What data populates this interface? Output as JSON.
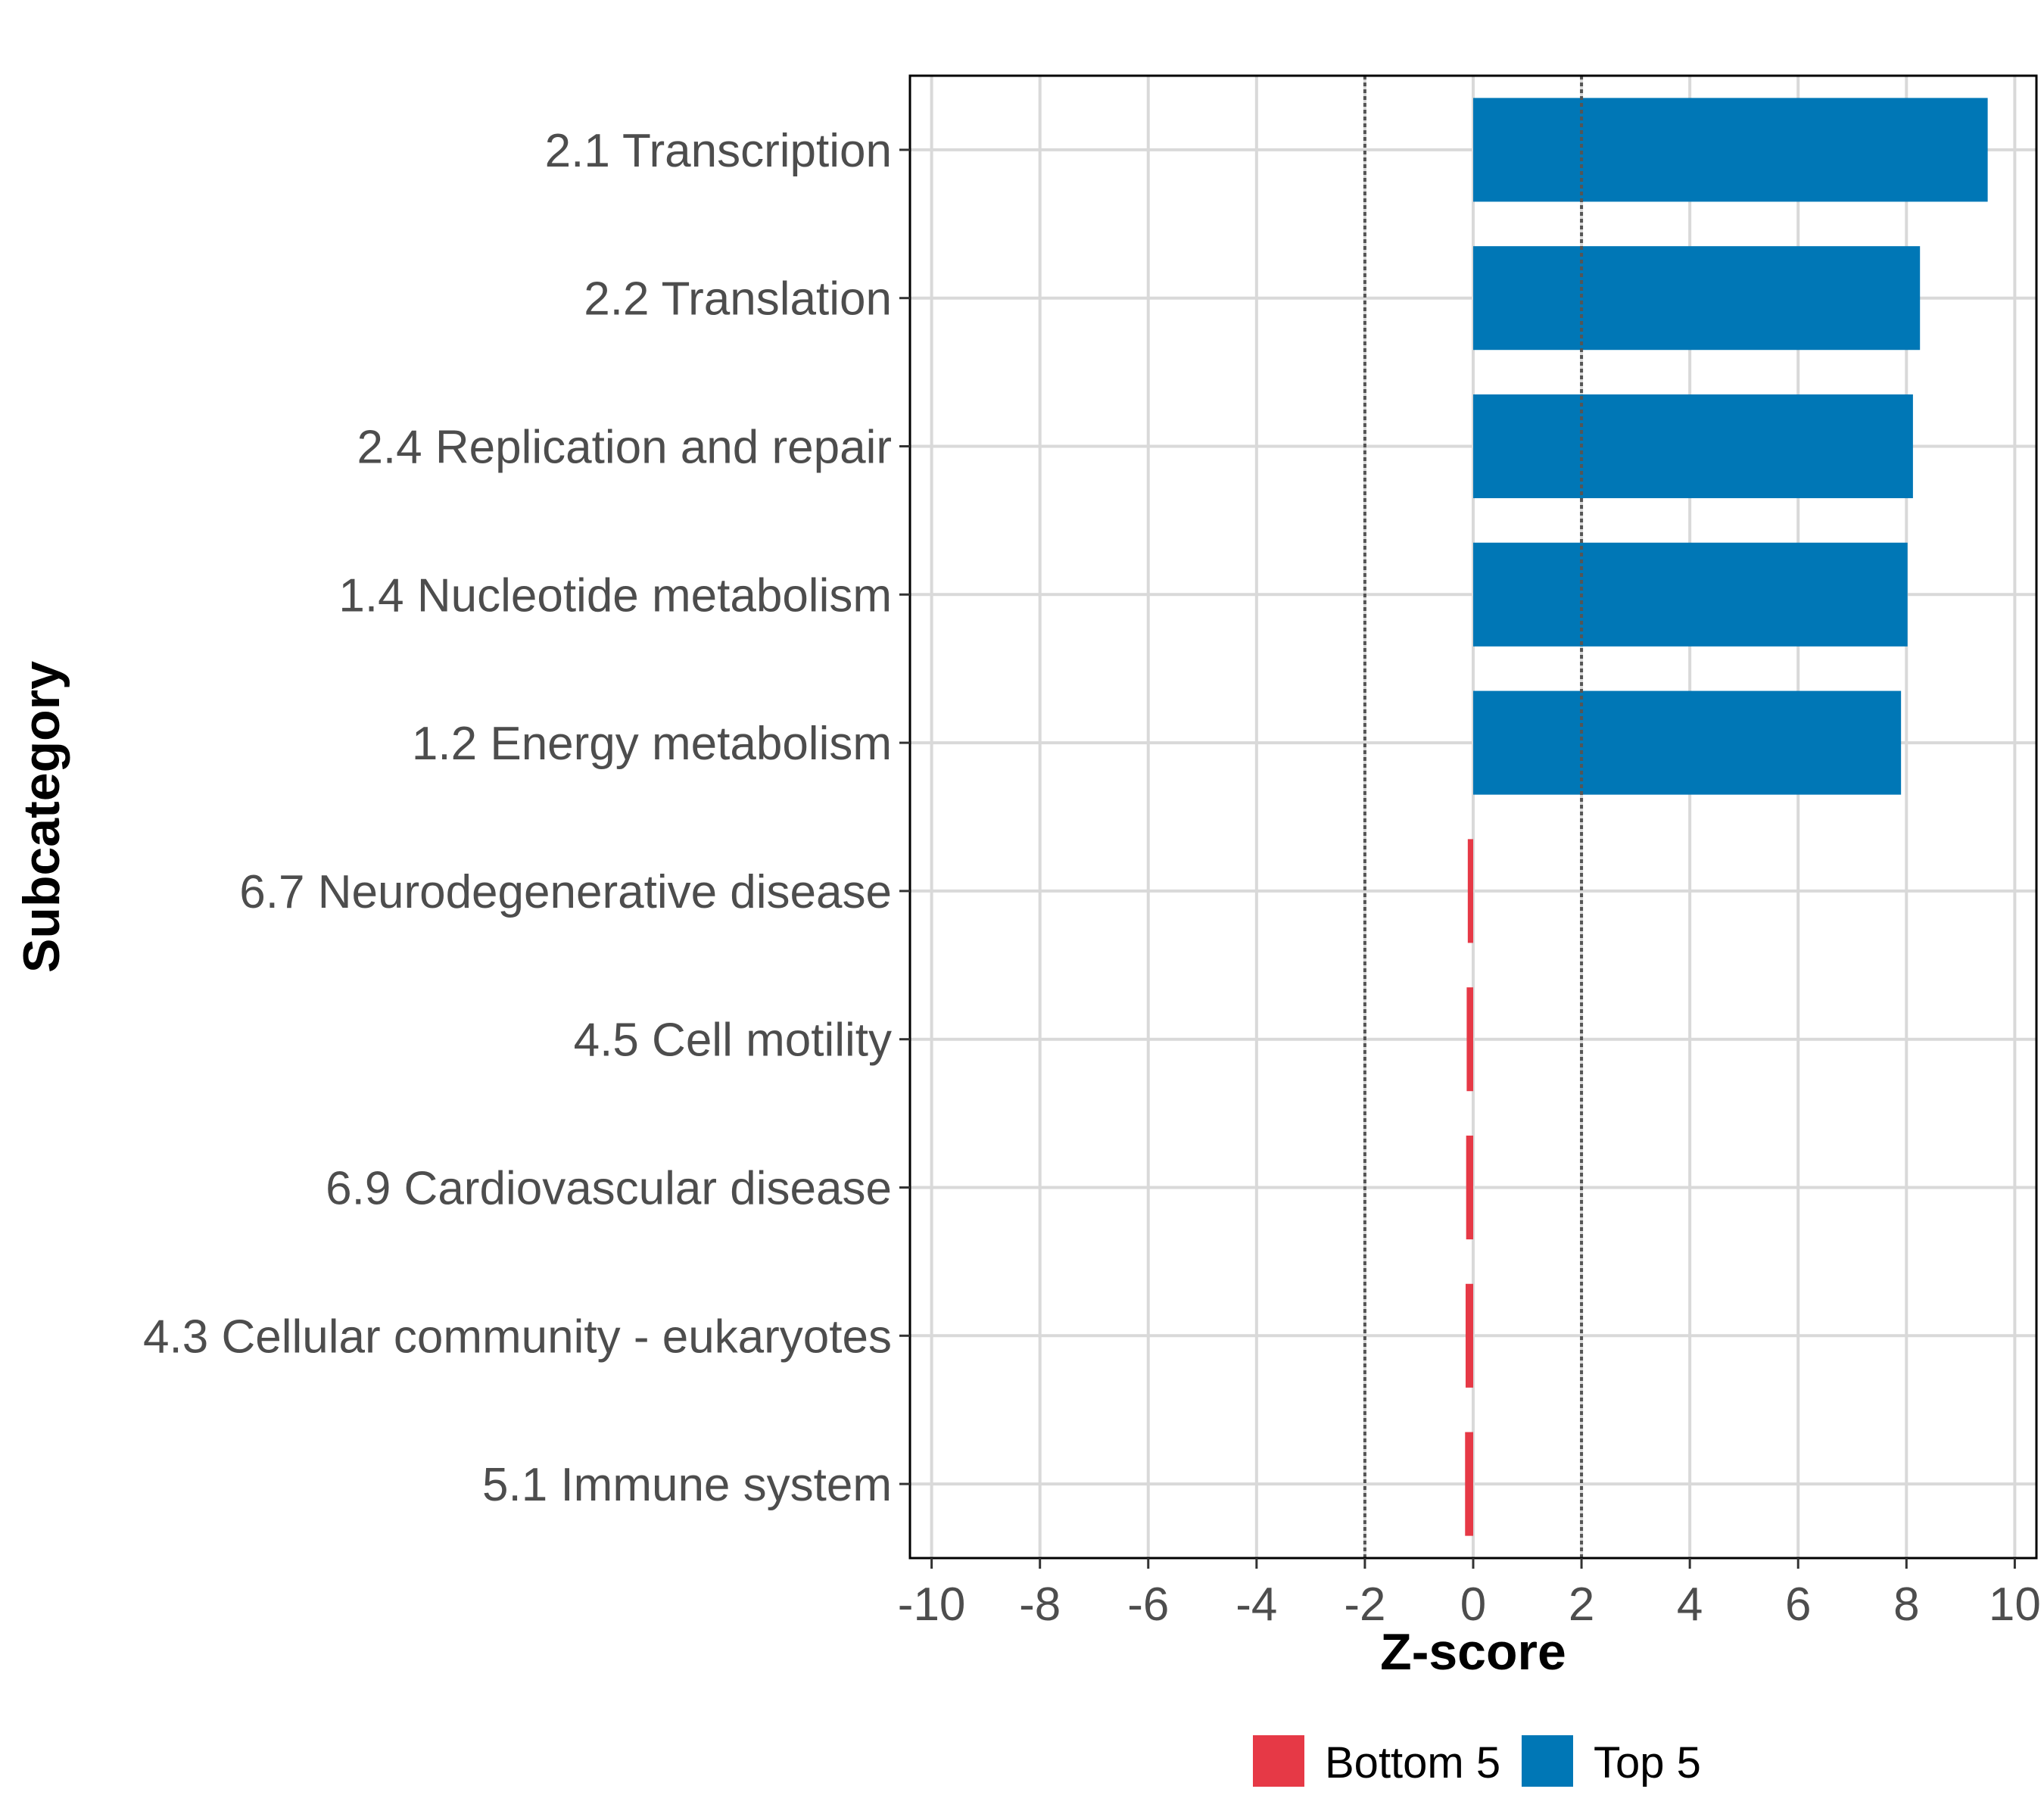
{
  "chart_data": {
    "type": "bar",
    "orientation": "horizontal",
    "title": "",
    "xlabel": "Z-score",
    "ylabel": "Subcategory",
    "xlim": [
      -10.4,
      10.4
    ],
    "xticks": [
      -10,
      -8,
      -6,
      -4,
      -2,
      0,
      2,
      4,
      6,
      8,
      10
    ],
    "xtick_labels": [
      "-10",
      "-8",
      "-6",
      "-4",
      "-2",
      "0",
      "2",
      "4",
      "6",
      "8",
      "10"
    ],
    "grid": true,
    "reference_lines": [
      -2,
      2
    ],
    "categories": [
      "2.1 Transcription",
      "2.2 Translation",
      "2.4 Replication and repair",
      "1.4 Nucleotide metabolism",
      "1.2 Energy metabolism",
      "6.7 Neurodegenerative disease",
      "4.5 Cell motility",
      "6.9 Cardiovascular disease",
      "4.3 Cellular community - eukaryotes",
      "5.1 Immune system"
    ],
    "values": [
      9.5,
      8.25,
      8.12,
      8.02,
      7.9,
      -0.1,
      -0.12,
      -0.13,
      -0.14,
      -0.15
    ],
    "groups": [
      "Top 5",
      "Top 5",
      "Top 5",
      "Top 5",
      "Top 5",
      "Bottom 5",
      "Bottom 5",
      "Bottom 5",
      "Bottom 5",
      "Bottom 5"
    ],
    "legend": {
      "position": "bottom",
      "entries": [
        {
          "label": "Bottom 5",
          "color": "#e63946"
        },
        {
          "label": "Top 5",
          "color": "#0077b6"
        }
      ]
    }
  }
}
